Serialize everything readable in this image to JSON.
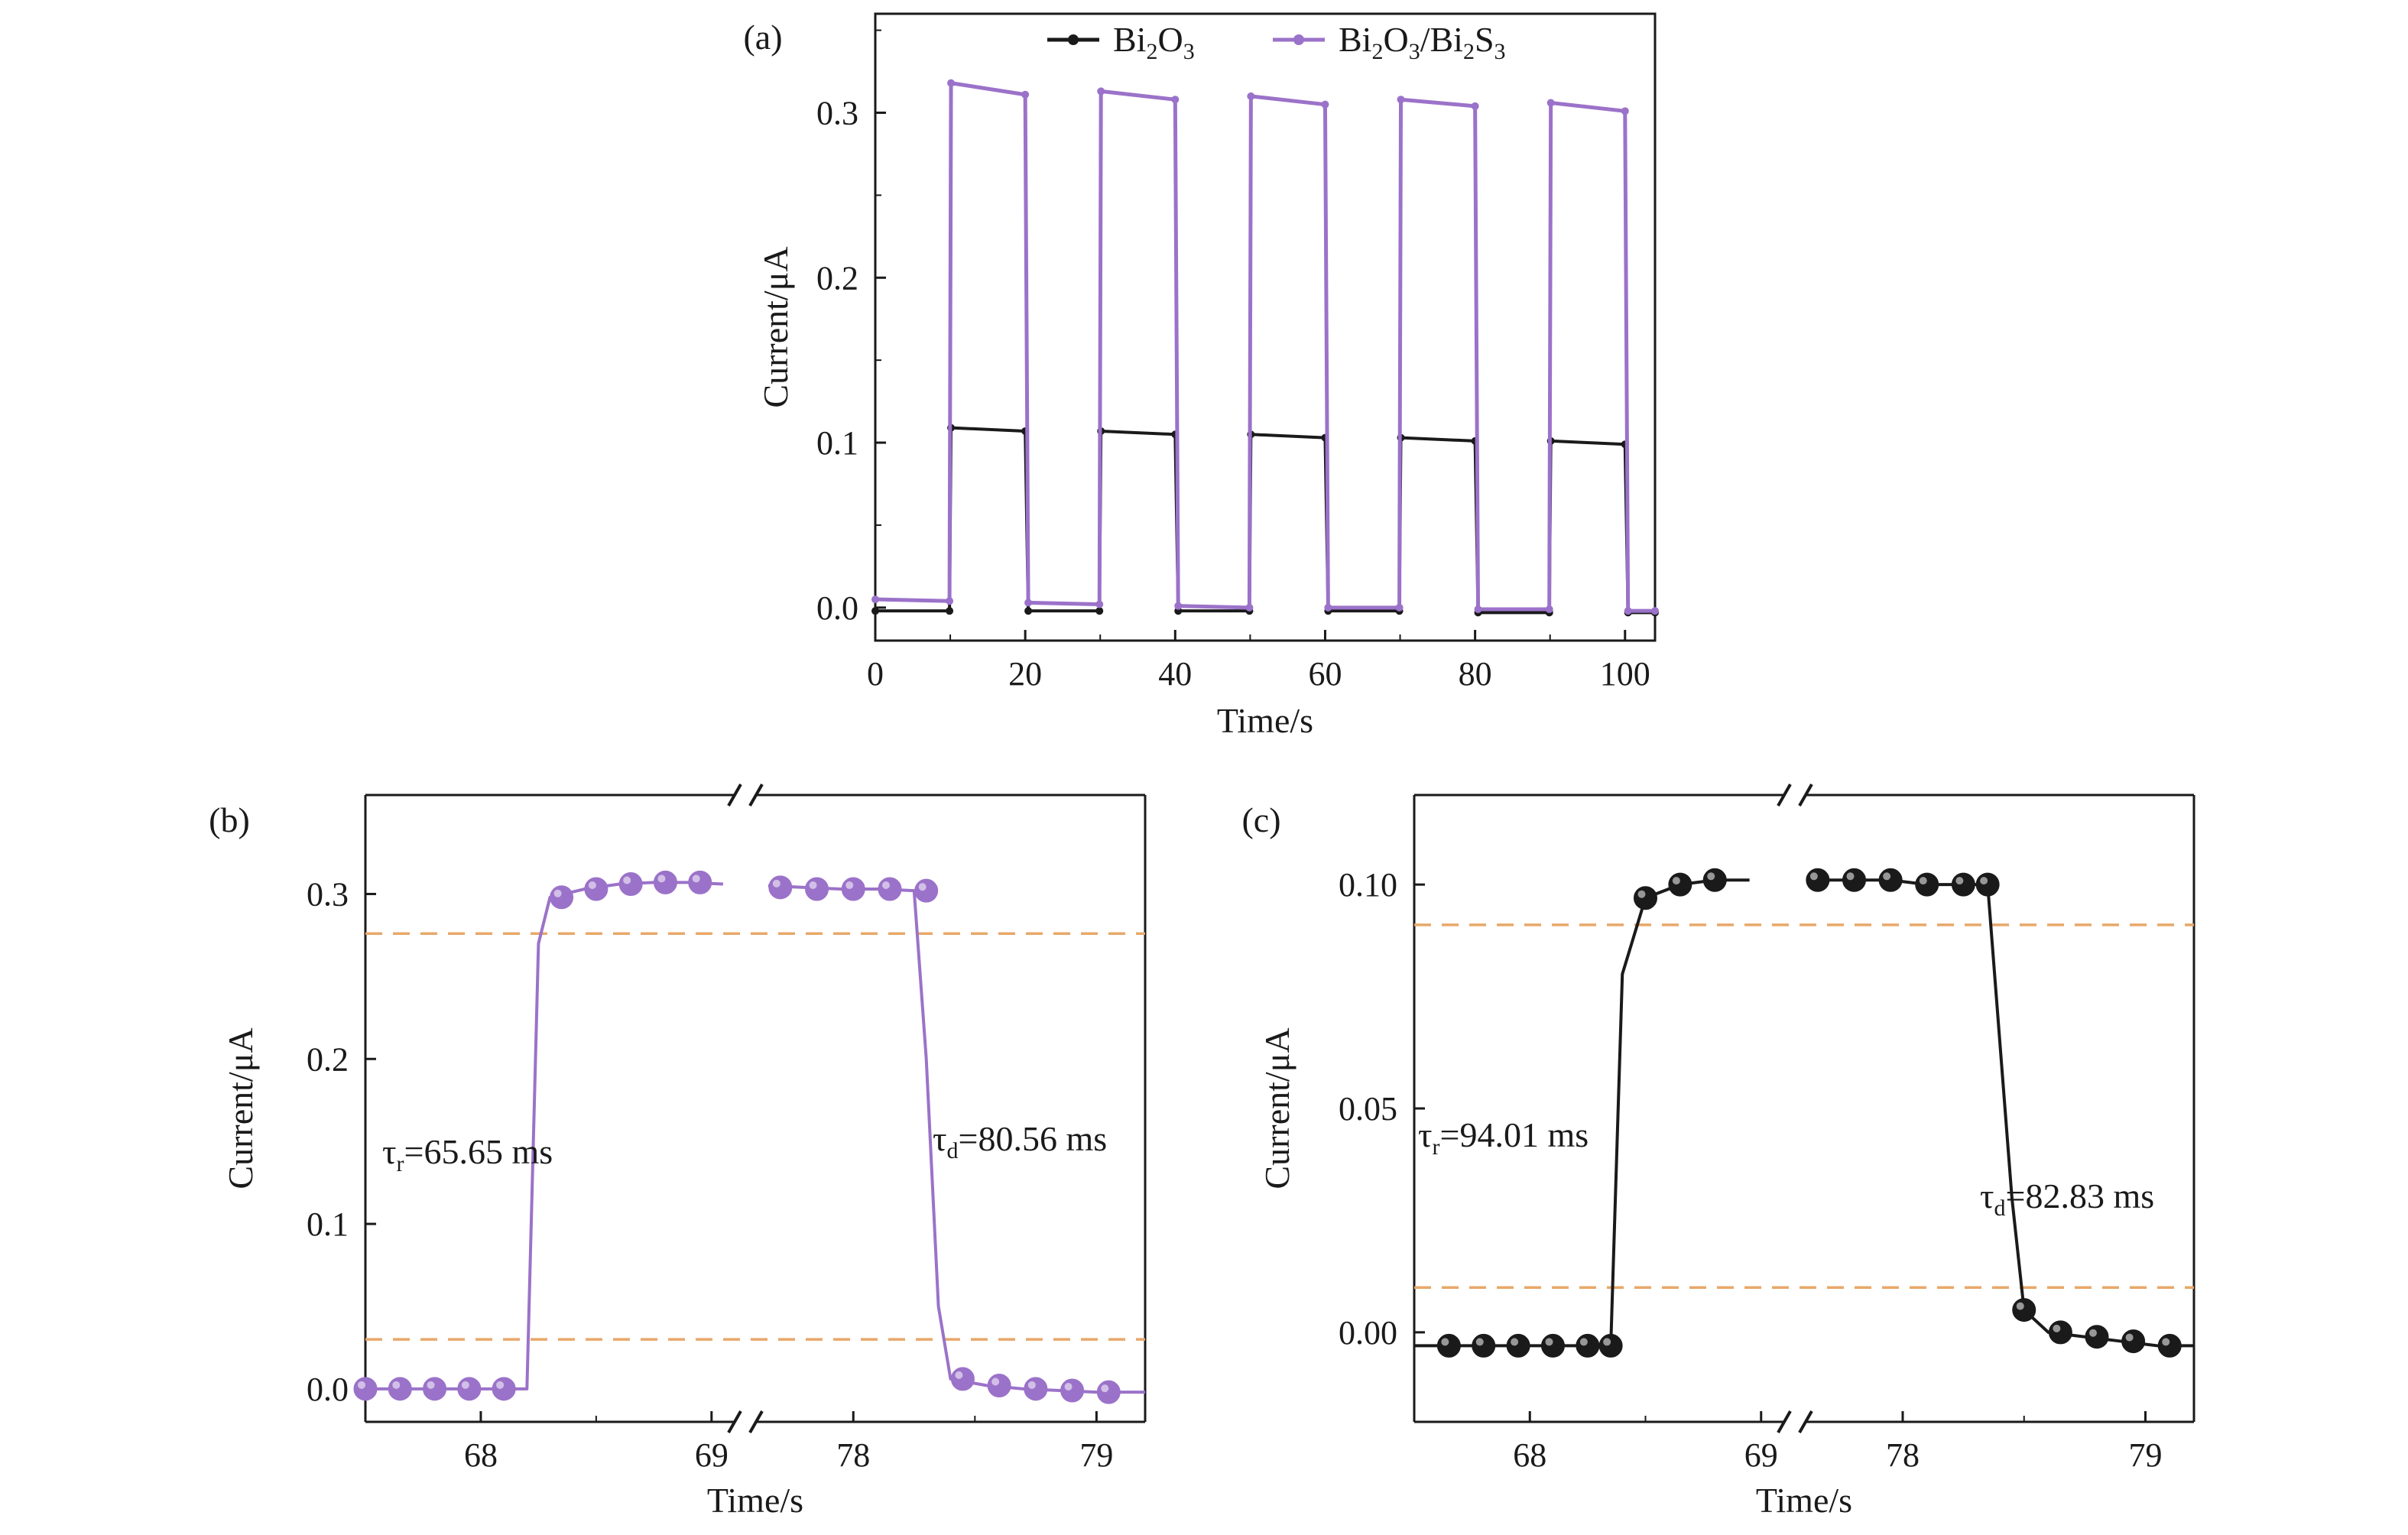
{
  "chart_data": [
    {
      "panel": "(a)",
      "type": "line",
      "xlabel": "Time/s",
      "ylabel": "Current/μA",
      "xlim": [
        0,
        104
      ],
      "ylim": [
        -0.02,
        0.36
      ],
      "xticks": [
        0,
        20,
        40,
        60,
        80,
        100
      ],
      "yticks": [
        0.0,
        0.1,
        0.2,
        0.3
      ],
      "xtick_labels": [
        "0",
        "20",
        "40",
        "60",
        "80",
        "100"
      ],
      "ytick_labels": [
        "0.0",
        "0.1",
        "0.2",
        "0.3"
      ],
      "legend": {
        "placement": "top",
        "entries": [
          {
            "base": "Bi",
            "s1": "2",
            "base2": "O",
            "s2": "3",
            "tail": ""
          },
          {
            "base": "Bi",
            "s1": "2",
            "base2": "O",
            "s2": "3",
            "tail": "/Bi",
            "s3": "2",
            "base3": "S",
            "s4": "3"
          }
        ]
      },
      "series": [
        {
          "name": "Bi2O3",
          "color": "#1a1a1a",
          "x": [
            0,
            9.9,
            10.1,
            20.0,
            20.4,
            29.9,
            30.1,
            40.0,
            40.4,
            49.9,
            50.1,
            60.0,
            60.4,
            69.9,
            70.1,
            80.0,
            80.4,
            89.9,
            90.1,
            100.0,
            100.4,
            104
          ],
          "y": [
            -0.002,
            -0.002,
            0.109,
            0.107,
            -0.002,
            -0.002,
            0.107,
            0.105,
            -0.002,
            -0.002,
            0.105,
            0.103,
            -0.002,
            -0.002,
            0.103,
            0.101,
            -0.003,
            -0.003,
            0.101,
            0.099,
            -0.003,
            -0.003
          ]
        },
        {
          "name": "Bi2O3/Bi2S3",
          "color": "#9b72c9",
          "x": [
            0,
            9.9,
            10.1,
            20.0,
            20.4,
            29.9,
            30.1,
            40.0,
            40.4,
            49.9,
            50.1,
            60.0,
            60.4,
            69.9,
            70.1,
            80.0,
            80.4,
            89.9,
            90.1,
            100.0,
            100.4,
            104
          ],
          "y": [
            0.005,
            0.004,
            0.318,
            0.311,
            0.003,
            0.002,
            0.313,
            0.308,
            0.001,
            0.0,
            0.31,
            0.305,
            0.0,
            0.0,
            0.308,
            0.304,
            -0.001,
            -0.001,
            0.306,
            0.301,
            -0.002,
            -0.002
          ]
        }
      ]
    },
    {
      "panel": "(b)",
      "type": "line",
      "xlabel": "Time/s",
      "ylabel": "Current/μA",
      "broken_x_axis": true,
      "x_segments": [
        [
          67.5,
          69.1
        ],
        [
          77.6,
          79.2
        ]
      ],
      "ylim": [
        -0.02,
        0.36
      ],
      "xtick_labels": [
        "68",
        "69",
        "78",
        "79"
      ],
      "xticks": [
        68,
        69,
        78,
        79
      ],
      "yticks": [
        0.0,
        0.1,
        0.2,
        0.3
      ],
      "ytick_labels": [
        "0.0",
        "0.1",
        "0.2",
        "0.3"
      ],
      "reference_lines": [
        0.276,
        0.03
      ],
      "reference_color": "#e8a86a",
      "annotations": [
        {
          "sym": "τ",
          "sub": "r",
          "text": "=65.65 ms"
        },
        {
          "sym": "τ",
          "sub": "d",
          "text": "=80.56 ms"
        }
      ],
      "series": [
        {
          "name": "Bi2O3/Bi2S3",
          "color": "#9b72c9",
          "x": [
            67.5,
            67.6,
            67.75,
            67.9,
            68.05,
            68.2,
            68.25,
            68.3,
            68.45,
            68.6,
            68.75,
            68.9,
            69.05,
            77.65,
            77.8,
            77.95,
            78.1,
            78.25,
            78.3,
            78.35,
            78.4,
            78.55,
            78.7,
            78.85,
            79.0,
            79.2
          ],
          "y": [
            0.0,
            0.0,
            0.0,
            0.0,
            0.0,
            0.0,
            0.27,
            0.298,
            0.303,
            0.306,
            0.307,
            0.307,
            0.306,
            0.305,
            0.304,
            0.303,
            0.303,
            0.302,
            0.2,
            0.05,
            0.006,
            0.002,
            0.0,
            -0.001,
            -0.002,
            -0.002
          ],
          "markers_x": [
            67.5,
            67.65,
            67.8,
            67.95,
            68.1,
            68.35,
            68.5,
            68.65,
            68.8,
            68.95,
            77.7,
            77.85,
            78.0,
            78.15,
            78.3,
            78.45,
            78.6,
            78.75,
            78.9,
            79.05
          ],
          "markers_y": [
            0.0,
            0.0,
            0.0,
            0.0,
            0.0,
            0.298,
            0.303,
            0.306,
            0.307,
            0.307,
            0.304,
            0.303,
            0.303,
            0.303,
            0.302,
            0.006,
            0.002,
            0.0,
            -0.001,
            -0.002
          ]
        }
      ]
    },
    {
      "panel": "(c)",
      "type": "line",
      "xlabel": "Time/s",
      "ylabel": "Current/μA",
      "broken_x_axis": true,
      "x_segments": [
        [
          67.5,
          69.1
        ],
        [
          77.6,
          79.2
        ]
      ],
      "ylim": [
        -0.02,
        0.12
      ],
      "xtick_labels": [
        "68",
        "69",
        "78",
        "79"
      ],
      "xticks": [
        68,
        69,
        78,
        79
      ],
      "yticks": [
        0.0,
        0.05,
        0.1
      ],
      "ytick_labels": [
        "0.00",
        "0.05",
        "0.10"
      ],
      "reference_lines": [
        0.091,
        0.01
      ],
      "reference_color": "#e8a86a",
      "annotations": [
        {
          "sym": "τ",
          "sub": "r",
          "text": "=94.01 ms"
        },
        {
          "sym": "τ",
          "sub": "d",
          "text": "=82.83 ms"
        }
      ],
      "series": [
        {
          "name": "Bi2O3",
          "color": "#1a1a1a",
          "x": [
            67.5,
            67.65,
            67.8,
            67.95,
            68.1,
            68.25,
            68.35,
            68.4,
            68.5,
            68.65,
            68.8,
            68.95,
            77.65,
            77.8,
            77.95,
            78.1,
            78.25,
            78.35,
            78.45,
            78.5,
            78.6,
            78.75,
            78.9,
            79.05,
            79.2
          ],
          "y": [
            -0.003,
            -0.003,
            -0.003,
            -0.003,
            -0.003,
            -0.003,
            -0.003,
            0.08,
            0.097,
            0.1,
            0.101,
            0.101,
            0.101,
            0.101,
            0.101,
            0.1,
            0.1,
            0.1,
            0.03,
            0.005,
            0.0,
            -0.001,
            -0.002,
            -0.003,
            -0.003
          ],
          "markers_x": [
            67.65,
            67.8,
            67.95,
            68.1,
            68.25,
            68.35,
            68.5,
            68.65,
            68.8,
            77.65,
            77.8,
            77.95,
            78.1,
            78.25,
            78.35,
            78.5,
            78.65,
            78.8,
            78.95,
            79.1
          ],
          "markers_y": [
            -0.003,
            -0.003,
            -0.003,
            -0.003,
            -0.003,
            -0.003,
            0.097,
            0.1,
            0.101,
            0.101,
            0.101,
            0.101,
            0.1,
            0.1,
            0.1,
            0.005,
            0.0,
            -0.001,
            -0.002,
            -0.003
          ]
        }
      ]
    }
  ]
}
